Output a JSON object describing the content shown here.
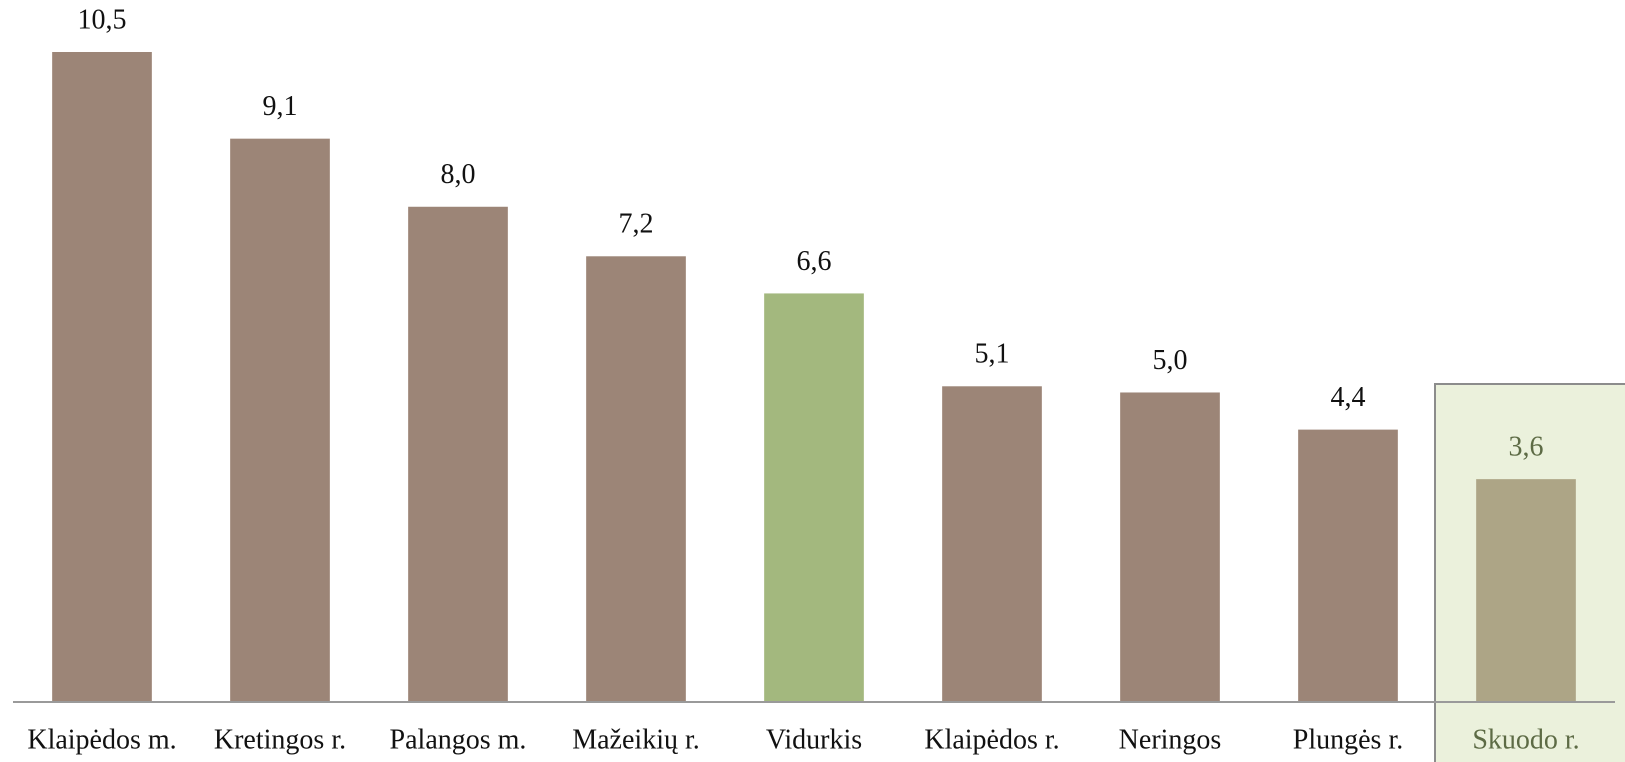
{
  "chart_data": {
    "type": "bar",
    "categories": [
      "Klaipėdos m.",
      "Kretingos r.",
      "Palangos m.",
      "Mažeikių r.",
      "Vidurkis",
      "Klaipėdos r.",
      "Neringos",
      "Plungės r.",
      "Skuodo r."
    ],
    "values": [
      10.5,
      9.1,
      8.0,
      7.2,
      6.6,
      5.1,
      5.0,
      4.4,
      3.6
    ],
    "value_labels": [
      "10,5",
      "9,1",
      "8,0",
      "7,2",
      "6,6",
      "5,1",
      "5,0",
      "4,4",
      "3,6"
    ],
    "colors": [
      "#9c8577",
      "#9c8577",
      "#9c8577",
      "#9c8577",
      "#a3b87e",
      "#9c8577",
      "#9c8577",
      "#9c8577",
      "#ada586"
    ],
    "highlight": 8,
    "ylim": [
      0,
      10.5
    ]
  }
}
